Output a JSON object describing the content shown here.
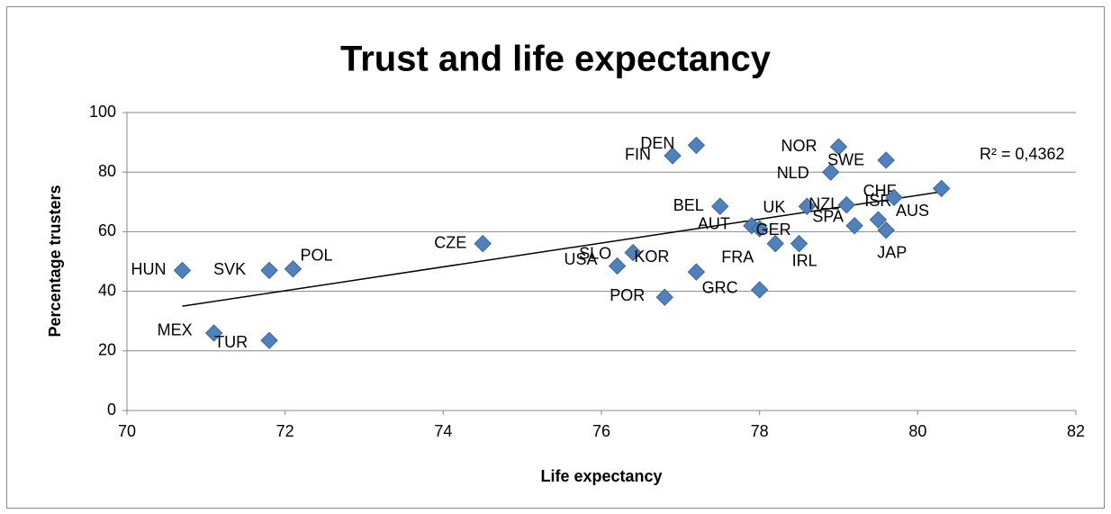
{
  "chart_data": {
    "type": "scatter",
    "title": "Trust and life expectancy",
    "x_label": "Life expectancy",
    "y_label": "Percentage trusters",
    "xlim": [
      70,
      82
    ],
    "ylim": [
      0,
      100
    ],
    "xticks": [
      70,
      72,
      74,
      76,
      78,
      80,
      82
    ],
    "yticks": [
      0,
      20,
      40,
      60,
      80,
      100
    ],
    "grid": true,
    "color": "#4f81bd",
    "series": [
      {
        "labels": [
          "HUN",
          "SVK",
          "MEX",
          "TUR",
          "POL",
          "CZE",
          "USA",
          "SLO",
          "KOR",
          "POR",
          "GRC",
          "FIN",
          "DEN",
          "BEL",
          "AUT",
          "UK",
          "NZL",
          "ISR",
          "CHF",
          "AUS",
          "JAP",
          "GER",
          "SPA",
          "FRA",
          "IRL",
          "NOR",
          "NLD",
          "SWE"
        ],
        "x": [
          70.7,
          71.8,
          71.1,
          71.8,
          72.1,
          74.5,
          76.2,
          76.4,
          77.2,
          76.8,
          78.0,
          76.9,
          77.2,
          77.5,
          77.9,
          78.6,
          79.1,
          79.5,
          80.3,
          79.7,
          79.6,
          78.0,
          79.2,
          78.2,
          78.5,
          79.0,
          78.9,
          79.6
        ],
        "values": [
          47,
          47,
          26,
          23.5,
          47.5,
          56,
          48.5,
          53,
          46.5,
          38,
          40.5,
          85.5,
          89,
          68.5,
          62,
          68.5,
          69,
          64,
          74.5,
          71.5,
          60.5,
          61,
          62,
          56,
          56,
          88.5,
          80,
          84
        ]
      }
    ],
    "trendline": {
      "x": [
        70.7,
        80.3
      ],
      "values": [
        35,
        73.4
      ],
      "annotation": "R² = 0,4362"
    }
  }
}
